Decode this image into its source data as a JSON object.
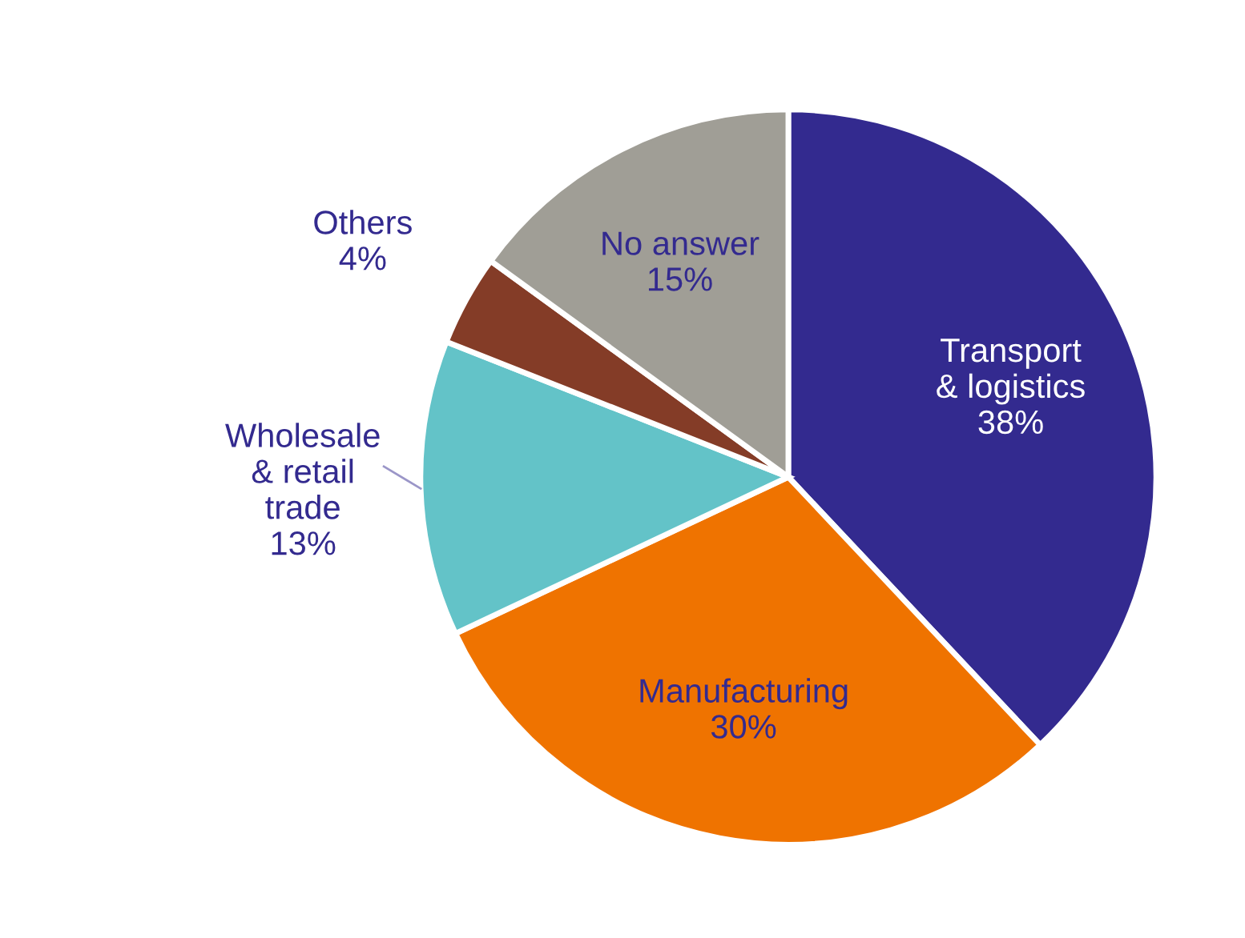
{
  "chart_data": {
    "type": "pie",
    "categories": [
      "Transport\n& logistics",
      "Manufacturing",
      "Wholesale\n& retail\ntrade",
      "Others",
      "No answer"
    ],
    "values": [
      38,
      30,
      13,
      4,
      15
    ],
    "value_labels": [
      "38%",
      "30%",
      "13%",
      "4%",
      "15%"
    ],
    "colors": [
      "#332a8f",
      "#ef7300",
      "#63c3c8",
      "#843c27",
      "#a09e96"
    ]
  }
}
